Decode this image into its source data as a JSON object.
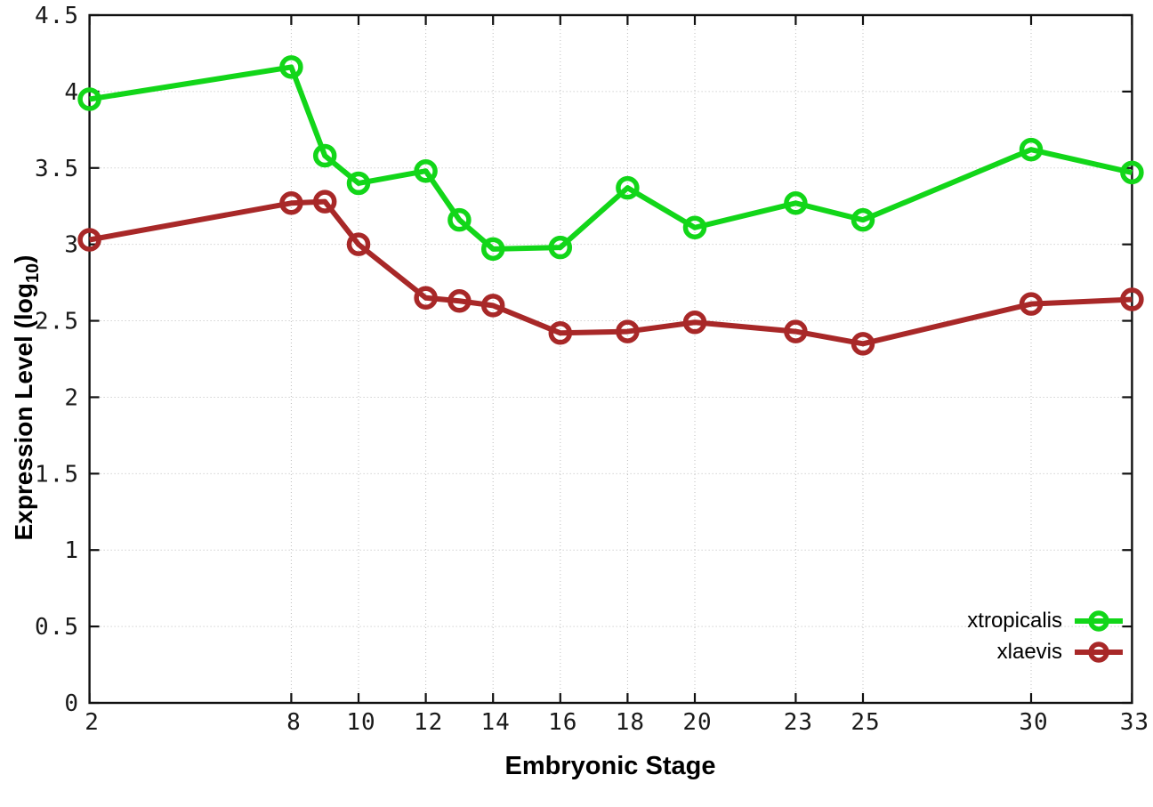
{
  "figure": {
    "background": "#ffffff"
  },
  "chart_data": {
    "type": "line",
    "title": "",
    "xlabel": "Embryonic Stage",
    "ylabel": "Expression Level (log10)",
    "ylabel_parts": {
      "prefix": "Expression Level (log",
      "sub": "10",
      "suffix": ")"
    },
    "xlim": [
      2,
      33
    ],
    "ylim": [
      0,
      4.5
    ],
    "xticks": [
      2,
      8,
      10,
      12,
      14,
      16,
      18,
      20,
      23,
      25,
      30,
      33
    ],
    "yticks": [
      0,
      0.5,
      1,
      1.5,
      2,
      2.5,
      3,
      3.5,
      4,
      4.5
    ],
    "grid": true,
    "legend_position": "bottom-right",
    "x": [
      2,
      8,
      9,
      10,
      12,
      13,
      14,
      16,
      18,
      20,
      23,
      25,
      30,
      33
    ],
    "series": [
      {
        "name": "xtropicalis",
        "color": "#12d619",
        "marker": "open-circle",
        "values": [
          3.95,
          4.16,
          3.58,
          3.4,
          3.48,
          3.16,
          2.97,
          2.98,
          3.37,
          3.11,
          3.27,
          3.16,
          3.62,
          3.47
        ]
      },
      {
        "name": "xlaevis",
        "color": "#a82828",
        "marker": "open-circle",
        "values": [
          3.03,
          3.27,
          3.28,
          3.0,
          2.65,
          2.63,
          2.6,
          2.42,
          2.43,
          2.49,
          2.43,
          2.35,
          2.61,
          2.64
        ]
      }
    ],
    "style": {
      "grid_color": "#bcbcbc",
      "axis_color": "#111111",
      "tick_label_color": "#1a1a1a"
    }
  }
}
